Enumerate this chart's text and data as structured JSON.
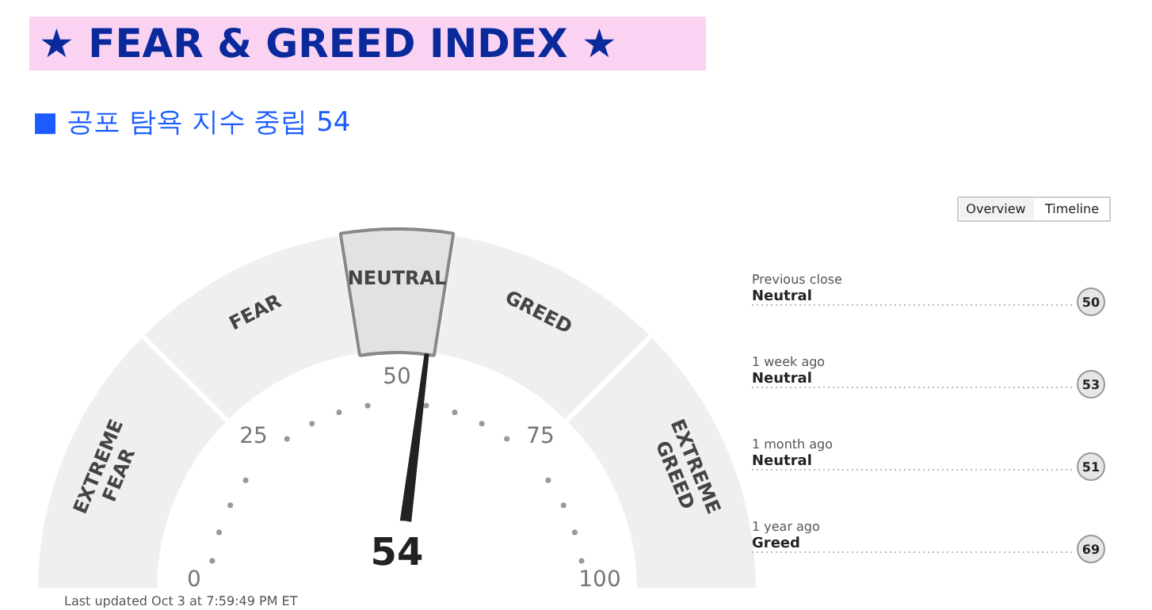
{
  "chart_data": {
    "type": "donut",
    "title": "★ FEAR & GREED INDEX ★",
    "subtitle": "■ 공포 탐욕 지수 중립 54",
    "categories": [
      "EXTREME FEAR",
      "FEAR",
      "NEUTRAL",
      "GREED",
      "EXTREME GREED"
    ],
    "values": [
      25,
      20,
      10,
      20,
      25
    ],
    "colors": [
      "#efefef",
      "#efefef",
      "#e2e2e2",
      "#efefef",
      "#efefef"
    ],
    "needle": "NEUTRAL",
    "annotations": [
      "54",
      "0",
      "25",
      "50",
      "75",
      "100",
      "Overview",
      "Timeline",
      "Previous close",
      "Neutral",
      "50",
      "1 week ago",
      "Neutral",
      "53",
      "1 month ago",
      "Neutral",
      "51",
      "1 year ago",
      "Greed",
      "69",
      "Last updated Oct 3 at 7:59:49 PM ET"
    ]
  }
}
